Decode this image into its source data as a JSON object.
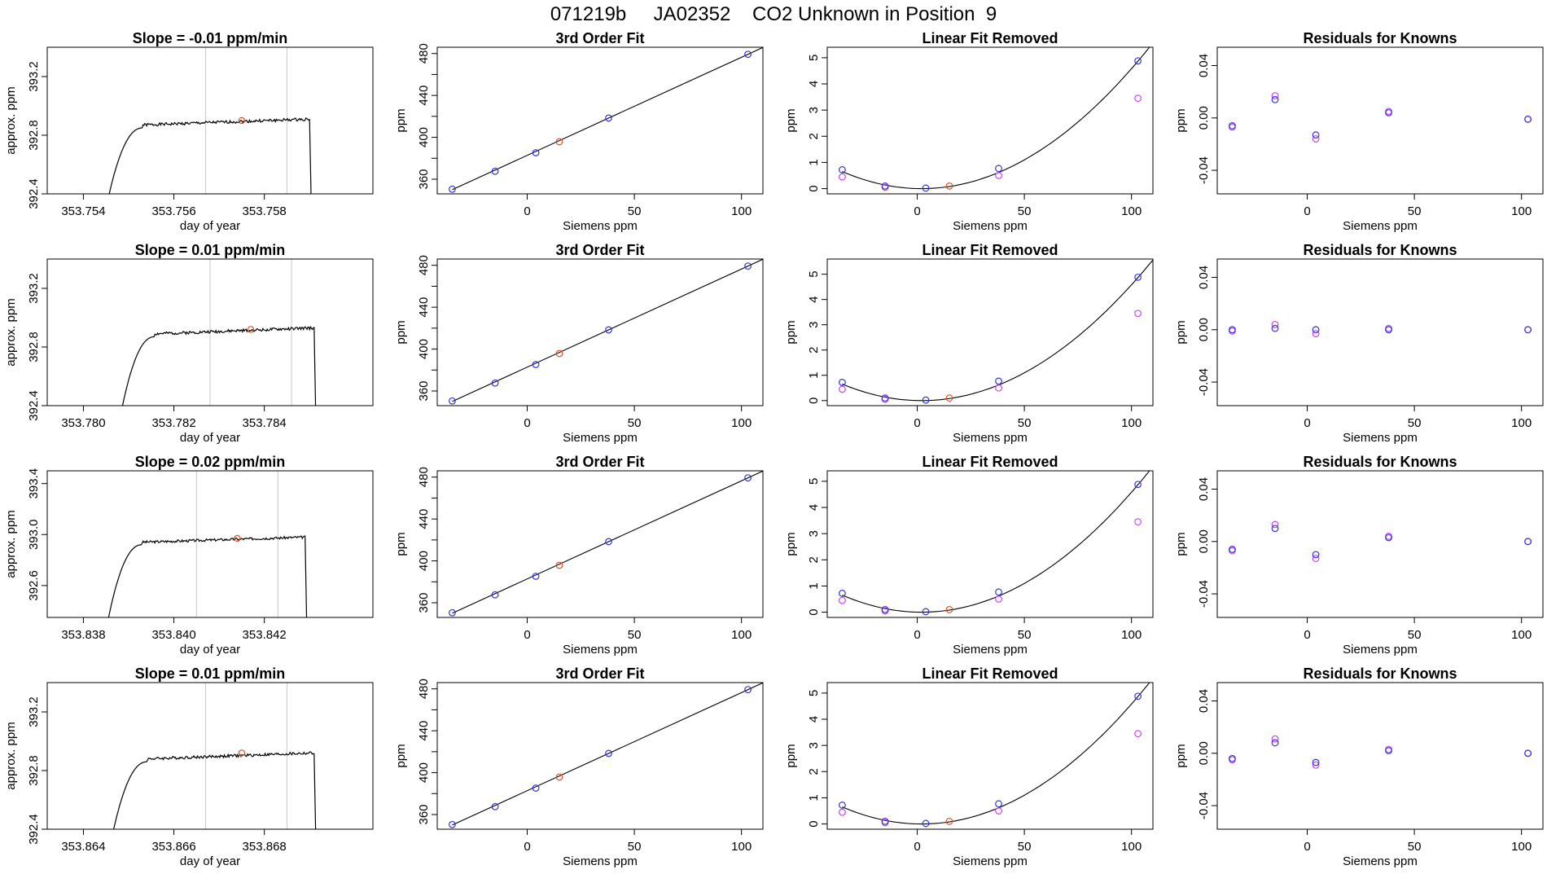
{
  "figure_title": "071219b     JA02352    CO2 Unknown in Position  9",
  "colors": {
    "known": "#3333dd",
    "known_alt": "#cc44ee",
    "unknown": "#e05020",
    "trace": "#000000",
    "vline": "#c8c8c8"
  },
  "chart_data": [
    {
      "type": "line",
      "title": "Slope =  -0.01  ppm/min",
      "xlabel": "day of year",
      "ylabel": "approx. ppm",
      "xlim": [
        353.7532,
        353.7604
      ],
      "ylim": [
        392.4,
        393.4
      ],
      "xticks": [
        "353.754",
        "353.756",
        "353.758"
      ],
      "xtick_values": [
        353.754,
        353.756,
        353.758
      ],
      "yticks": [
        "392.4",
        "392.8",
        "393.2"
      ],
      "ytick_values": [
        392.4,
        392.8,
        393.2
      ],
      "vlines": [
        353.7567,
        353.7585
      ],
      "marker": {
        "x": 353.7575,
        "y": 392.9
      },
      "trace": {
        "x0": 353.7545,
        "x1": 353.759,
        "level": 392.9,
        "noise": 0.02,
        "seed": 1
      }
    },
    {
      "type": "scatter",
      "title": "3rd Order Fit",
      "xlabel": "Siemens ppm",
      "ylabel": "ppm",
      "xlim": [
        -42,
        110
      ],
      "ylim": [
        346,
        486
      ],
      "xticks": [
        "0",
        "50",
        "100"
      ],
      "xtick_values": [
        0,
        50,
        100
      ],
      "yticks": [
        "360",
        "400",
        "440",
        "480"
      ],
      "ytick_values": [
        360,
        400,
        440,
        480
      ],
      "fit_line": {
        "x": [
          -35,
          110
        ],
        "y": [
          350.0,
          485.8
        ]
      },
      "knowns": {
        "x": [
          -35,
          -15,
          4,
          38,
          103
        ],
        "y": [
          350.5,
          367.6,
          385.3,
          418.4,
          479.3
        ]
      },
      "unknown": {
        "x": [
          15
        ],
        "y": [
          395.8
        ]
      }
    },
    {
      "type": "scatter",
      "title": "Linear Fit Removed",
      "xlabel": "Siemens ppm",
      "ylabel": "ppm",
      "xlim": [
        -42,
        110
      ],
      "ylim": [
        -0.2,
        5.4
      ],
      "xticks": [
        "0",
        "50",
        "100"
      ],
      "xtick_values": [
        0,
        50,
        100
      ],
      "yticks": [
        "0",
        "1",
        "2",
        "3",
        "4",
        "5"
      ],
      "ytick_values": [
        0,
        1,
        2,
        3,
        4,
        5
      ],
      "curve": {
        "a": 0.000477,
        "x0": 2,
        "x_range": [
          -35,
          110
        ]
      },
      "knowns": {
        "x": [
          -35,
          -15,
          4,
          38,
          103
        ],
        "y": [
          0.72,
          0.1,
          0.02,
          0.77,
          4.88
        ]
      },
      "knowns_alt": {
        "x": [
          -35,
          -15,
          38,
          103
        ],
        "y": [
          0.45,
          0.05,
          0.5,
          3.45
        ]
      },
      "unknown": {
        "x": [
          15
        ],
        "y": [
          0.1
        ]
      }
    },
    {
      "type": "scatter",
      "title": "Residuals for Knowns",
      "xlabel": "Siemens ppm",
      "ylabel": "ppm",
      "xlim": [
        -42,
        110
      ],
      "ylim": [
        -0.058,
        0.054
      ],
      "xticks": [
        "0",
        "50",
        "100"
      ],
      "xtick_values": [
        0,
        50,
        100
      ],
      "yticks": [
        "-0.04",
        "0.00",
        "0.04"
      ],
      "ytick_values": [
        -0.04,
        0.0,
        0.04
      ],
      "knowns": {
        "x": [
          -35,
          -15,
          4,
          38,
          103
        ],
        "y": [
          -0.006,
          0.014,
          -0.013,
          0.004,
          -0.001
        ]
      },
      "knowns_alt": {
        "x": [
          -35,
          -15,
          4,
          38,
          103
        ],
        "y": [
          -0.007,
          0.017,
          -0.016,
          0.005,
          -0.001
        ]
      }
    },
    {
      "type": "line",
      "title": "Slope =  0.01  ppm/min",
      "xlabel": "day of year",
      "ylabel": "approx. ppm",
      "xlim": [
        353.7792,
        353.7864
      ],
      "ylim": [
        392.4,
        393.4
      ],
      "xticks": [
        "353.780",
        "353.782",
        "353.784"
      ],
      "xtick_values": [
        353.78,
        353.782,
        353.784
      ],
      "yticks": [
        "392.4",
        "392.8",
        "393.2"
      ],
      "ytick_values": [
        392.4,
        392.8,
        393.2
      ],
      "vlines": [
        353.7828,
        353.7846
      ],
      "marker": {
        "x": 353.7837,
        "y": 392.92
      },
      "trace": {
        "x0": 353.7808,
        "x1": 353.7851,
        "level": 392.92,
        "noise": 0.02,
        "seed": 2
      }
    },
    {
      "type": "scatter",
      "title": "3rd Order Fit",
      "xlabel": "Siemens ppm",
      "ylabel": "ppm",
      "xlim": [
        -42,
        110
      ],
      "ylim": [
        346,
        486
      ],
      "xticks": [
        "0",
        "50",
        "100"
      ],
      "xtick_values": [
        0,
        50,
        100
      ],
      "yticks": [
        "360",
        "400",
        "440",
        "480"
      ],
      "ytick_values": [
        360,
        400,
        440,
        480
      ],
      "fit_line": {
        "x": [
          -35,
          110
        ],
        "y": [
          350.0,
          485.8
        ]
      },
      "knowns": {
        "x": [
          -35,
          -15,
          4,
          38,
          103
        ],
        "y": [
          350.5,
          367.6,
          385.3,
          418.4,
          479.3
        ]
      },
      "unknown": {
        "x": [
          15
        ],
        "y": [
          395.8
        ]
      }
    },
    {
      "type": "scatter",
      "title": "Linear Fit Removed",
      "xlabel": "Siemens ppm",
      "ylabel": "ppm",
      "xlim": [
        -42,
        110
      ],
      "ylim": [
        -0.2,
        5.6
      ],
      "xticks": [
        "0",
        "50",
        "100"
      ],
      "xtick_values": [
        0,
        50,
        100
      ],
      "yticks": [
        "0",
        "1",
        "2",
        "3",
        "4",
        "5"
      ],
      "ytick_values": [
        0,
        1,
        2,
        3,
        4,
        5
      ],
      "curve": {
        "a": 0.000477,
        "x0": 2,
        "x_range": [
          -35,
          110
        ]
      },
      "knowns": {
        "x": [
          -35,
          -15,
          4,
          38,
          103
        ],
        "y": [
          0.72,
          0.1,
          0.02,
          0.77,
          4.88
        ]
      },
      "knowns_alt": {
        "x": [
          -35,
          -15,
          38,
          103
        ],
        "y": [
          0.45,
          0.05,
          0.5,
          3.45
        ]
      },
      "unknown": {
        "x": [
          15
        ],
        "y": [
          0.1
        ]
      }
    },
    {
      "type": "scatter",
      "title": "Residuals for Knowns",
      "xlabel": "Siemens ppm",
      "ylabel": "ppm",
      "xlim": [
        -42,
        110
      ],
      "ylim": [
        -0.058,
        0.054
      ],
      "xticks": [
        "0",
        "50",
        "100"
      ],
      "xtick_values": [
        0,
        50,
        100
      ],
      "yticks": [
        "-0.04",
        "0.00",
        "0.04"
      ],
      "ytick_values": [
        -0.04,
        0.0,
        0.04
      ],
      "knowns": {
        "x": [
          -35,
          -15,
          4,
          38,
          103
        ],
        "y": [
          0.0,
          0.001,
          0.0,
          0.0,
          0.0
        ]
      },
      "knowns_alt": {
        "x": [
          -35,
          -15,
          4,
          38,
          103
        ],
        "y": [
          -0.001,
          0.004,
          -0.003,
          0.001,
          0.0
        ]
      }
    },
    {
      "type": "line",
      "title": "Slope =  0.02  ppm/min",
      "xlabel": "day of year",
      "ylabel": "approx. ppm",
      "xlim": [
        353.8372,
        353.8444
      ],
      "ylim": [
        392.35,
        393.5
      ],
      "xticks": [
        "353.838",
        "353.840",
        "353.842"
      ],
      "xtick_values": [
        353.838,
        353.84,
        353.842
      ],
      "yticks": [
        "392.6",
        "393.0",
        "393.4"
      ],
      "ytick_values": [
        392.6,
        393.0,
        393.4
      ],
      "vlines": [
        353.8405,
        353.8423
      ],
      "marker": {
        "x": 353.8414,
        "y": 392.97
      },
      "trace": {
        "x0": 353.8385,
        "x1": 353.8429,
        "level": 392.97,
        "noise": 0.02,
        "seed": 3
      }
    },
    {
      "type": "scatter",
      "title": "3rd Order Fit",
      "xlabel": "Siemens ppm",
      "ylabel": "ppm",
      "xlim": [
        -42,
        110
      ],
      "ylim": [
        346,
        486
      ],
      "xticks": [
        "0",
        "50",
        "100"
      ],
      "xtick_values": [
        0,
        50,
        100
      ],
      "yticks": [
        "360",
        "400",
        "440",
        "480"
      ],
      "ytick_values": [
        360,
        400,
        440,
        480
      ],
      "fit_line": {
        "x": [
          -35,
          110
        ],
        "y": [
          350.0,
          485.8
        ]
      },
      "knowns": {
        "x": [
          -35,
          -15,
          4,
          38,
          103
        ],
        "y": [
          350.5,
          367.6,
          385.3,
          418.4,
          479.3
        ]
      },
      "unknown": {
        "x": [
          15
        ],
        "y": [
          395.8
        ]
      }
    },
    {
      "type": "scatter",
      "title": "Linear Fit Removed",
      "xlabel": "Siemens ppm",
      "ylabel": "ppm",
      "xlim": [
        -42,
        110
      ],
      "ylim": [
        -0.2,
        5.4
      ],
      "xticks": [
        "0",
        "50",
        "100"
      ],
      "xtick_values": [
        0,
        50,
        100
      ],
      "yticks": [
        "0",
        "1",
        "2",
        "3",
        "4",
        "5"
      ],
      "ytick_values": [
        0,
        1,
        2,
        3,
        4,
        5
      ],
      "curve": {
        "a": 0.000477,
        "x0": 2,
        "x_range": [
          -35,
          110
        ]
      },
      "knowns": {
        "x": [
          -35,
          -15,
          4,
          38,
          103
        ],
        "y": [
          0.72,
          0.1,
          0.02,
          0.77,
          4.88
        ]
      },
      "knowns_alt": {
        "x": [
          -35,
          -15,
          38,
          103
        ],
        "y": [
          0.45,
          0.05,
          0.5,
          3.45
        ]
      },
      "unknown": {
        "x": [
          15
        ],
        "y": [
          0.1
        ]
      }
    },
    {
      "type": "scatter",
      "title": "Residuals for Knowns",
      "xlabel": "Siemens ppm",
      "ylabel": "ppm",
      "xlim": [
        -42,
        110
      ],
      "ylim": [
        -0.058,
        0.054
      ],
      "xticks": [
        "0",
        "50",
        "100"
      ],
      "xtick_values": [
        0,
        50,
        100
      ],
      "yticks": [
        "-0.04",
        "0.00",
        "0.04"
      ],
      "ytick_values": [
        -0.04,
        0.0,
        0.04
      ],
      "knowns": {
        "x": [
          -35,
          -15,
          4,
          38,
          103
        ],
        "y": [
          -0.006,
          0.01,
          -0.01,
          0.003,
          0.0
        ]
      },
      "knowns_alt": {
        "x": [
          -35,
          -15,
          4,
          38,
          103
        ],
        "y": [
          -0.007,
          0.013,
          -0.013,
          0.004,
          0.0
        ]
      }
    },
    {
      "type": "line",
      "title": "Slope =  0.01  ppm/min",
      "xlabel": "day of year",
      "ylabel": "approx. ppm",
      "xlim": [
        353.8632,
        353.8704
      ],
      "ylim": [
        392.4,
        393.4
      ],
      "xticks": [
        "353.864",
        "353.866",
        "353.868"
      ],
      "xtick_values": [
        353.864,
        353.866,
        353.868
      ],
      "yticks": [
        "392.4",
        "392.8",
        "393.2"
      ],
      "ytick_values": [
        392.4,
        392.8,
        393.2
      ],
      "vlines": [
        353.8667,
        353.8685
      ],
      "marker": {
        "x": 353.8675,
        "y": 392.92
      },
      "trace": {
        "x0": 353.8646,
        "x1": 353.8691,
        "level": 392.91,
        "noise": 0.02,
        "seed": 4
      }
    },
    {
      "type": "scatter",
      "title": "3rd Order Fit",
      "xlabel": "Siemens ppm",
      "ylabel": "ppm",
      "xlim": [
        -42,
        110
      ],
      "ylim": [
        346,
        486
      ],
      "xticks": [
        "0",
        "50",
        "100"
      ],
      "xtick_values": [
        0,
        50,
        100
      ],
      "yticks": [
        "360",
        "400",
        "440",
        "480"
      ],
      "ytick_values": [
        360,
        400,
        440,
        480
      ],
      "fit_line": {
        "x": [
          -35,
          110
        ],
        "y": [
          350.0,
          485.8
        ]
      },
      "knowns": {
        "x": [
          -35,
          -15,
          4,
          38,
          103
        ],
        "y": [
          350.5,
          367.6,
          385.3,
          418.4,
          479.3
        ]
      },
      "unknown": {
        "x": [
          15
        ],
        "y": [
          395.8
        ]
      }
    },
    {
      "type": "scatter",
      "title": "Linear Fit Removed",
      "xlabel": "Siemens ppm",
      "ylabel": "ppm",
      "xlim": [
        -42,
        110
      ],
      "ylim": [
        -0.2,
        5.4
      ],
      "xticks": [
        "0",
        "50",
        "100"
      ],
      "xtick_values": [
        0,
        50,
        100
      ],
      "yticks": [
        "0",
        "1",
        "2",
        "3",
        "4",
        "5"
      ],
      "ytick_values": [
        0,
        1,
        2,
        3,
        4,
        5
      ],
      "curve": {
        "a": 0.000477,
        "x0": 2,
        "x_range": [
          -35,
          110
        ]
      },
      "knowns": {
        "x": [
          -35,
          -15,
          4,
          38,
          103
        ],
        "y": [
          0.72,
          0.1,
          0.02,
          0.77,
          4.88
        ]
      },
      "knowns_alt": {
        "x": [
          -35,
          -15,
          38,
          103
        ],
        "y": [
          0.45,
          0.05,
          0.5,
          3.45
        ]
      },
      "unknown": {
        "x": [
          15
        ],
        "y": [
          0.1
        ]
      }
    },
    {
      "type": "scatter",
      "title": "Residuals for Knowns",
      "xlabel": "Siemens ppm",
      "ylabel": "ppm",
      "xlim": [
        -42,
        110
      ],
      "ylim": [
        -0.058,
        0.054
      ],
      "xticks": [
        "0",
        "50",
        "100"
      ],
      "xtick_values": [
        0,
        50,
        100
      ],
      "yticks": [
        "-0.04",
        "0.00",
        "0.04"
      ],
      "ytick_values": [
        -0.04,
        0.0,
        0.04
      ],
      "knowns": {
        "x": [
          -35,
          -15,
          4,
          38,
          103
        ],
        "y": [
          -0.004,
          0.008,
          -0.007,
          0.002,
          0.0
        ]
      },
      "knowns_alt": {
        "x": [
          -35,
          -15,
          4,
          38,
          103
        ],
        "y": [
          -0.005,
          0.011,
          -0.009,
          0.003,
          0.0
        ]
      }
    }
  ]
}
